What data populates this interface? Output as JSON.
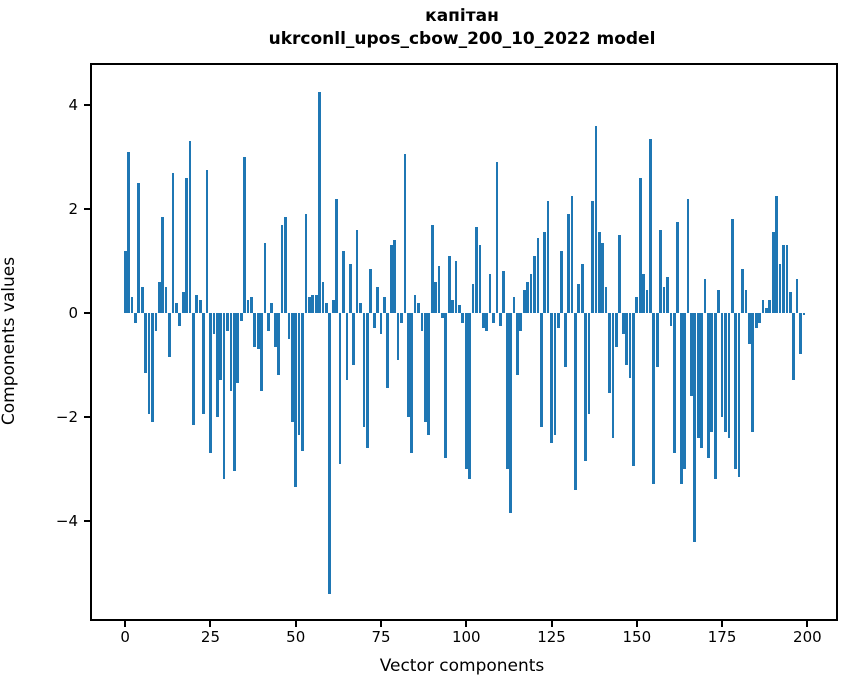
{
  "figure": {
    "background": "#ffffff",
    "title_line1": "капітан",
    "title_line2": "ukrconll_upos_cbow_200_10_2022 model"
  },
  "chart_data": {
    "type": "bar",
    "title": "капітан\nukrconll_upos_cbow_200_10_2022 model",
    "xlabel": "Vector components",
    "ylabel": "Components values",
    "bar_color": "#1f77b4",
    "axis_color": "#000000",
    "grid": false,
    "legend": "none",
    "xlim": [
      -9.73,
      208.4
    ],
    "ylim": [
      -5.89,
      4.77
    ],
    "x_ticks": [
      0,
      25,
      50,
      75,
      100,
      125,
      150,
      175,
      200
    ],
    "y_ticks": [
      4,
      2,
      0,
      -2,
      -4
    ],
    "x": "indices 0..199",
    "values": [
      1.2,
      3.1,
      0.3,
      -0.2,
      2.5,
      0.5,
      -1.15,
      -1.95,
      -2.1,
      -0.35,
      0.6,
      1.85,
      0.5,
      -0.85,
      2.7,
      0.2,
      -0.25,
      0.4,
      2.6,
      3.3,
      -2.15,
      0.35,
      0.25,
      -1.95,
      2.75,
      -2.7,
      -0.4,
      -2.0,
      -1.3,
      -3.2,
      -0.35,
      -1.5,
      -3.05,
      -1.35,
      -0.15,
      3.0,
      0.25,
      0.3,
      -0.65,
      -0.7,
      -1.5,
      1.35,
      -0.35,
      0.2,
      -0.65,
      -1.2,
      1.7,
      1.85,
      -0.5,
      -2.1,
      -3.35,
      -2.35,
      -2.65,
      1.9,
      0.3,
      0.35,
      0.35,
      4.25,
      0.6,
      0.2,
      -5.4,
      0.25,
      2.2,
      -2.9,
      1.2,
      -1.3,
      0.95,
      -1.0,
      1.6,
      0.2,
      -2.2,
      -2.6,
      0.85,
      -0.3,
      0.5,
      -0.4,
      0.3,
      -1.45,
      1.3,
      1.4,
      -0.9,
      -0.2,
      3.05,
      -2.0,
      -2.7,
      0.35,
      0.2,
      -0.35,
      -2.1,
      -2.35,
      1.7,
      0.6,
      0.9,
      -0.1,
      -2.8,
      1.1,
      0.25,
      1.0,
      0.15,
      -0.2,
      -3.0,
      -3.2,
      0.55,
      1.65,
      1.3,
      -0.3,
      -0.35,
      0.75,
      -0.2,
      2.9,
      -0.25,
      0.8,
      -3.0,
      -3.85,
      0.3,
      -1.2,
      -0.35,
      0.45,
      0.6,
      0.75,
      1.1,
      1.45,
      -2.2,
      1.55,
      2.15,
      -2.5,
      -2.35,
      -0.3,
      1.2,
      -1.05,
      1.9,
      2.25,
      -3.4,
      0.55,
      0.95,
      -2.85,
      -1.95,
      2.15,
      3.6,
      1.55,
      1.35,
      0.5,
      -1.55,
      -2.4,
      -0.65,
      1.5,
      -0.4,
      -1.0,
      -1.25,
      -2.95,
      0.3,
      2.6,
      0.75,
      0.45,
      3.35,
      -3.3,
      -1.05,
      1.6,
      0.5,
      0.7,
      -0.25,
      -2.7,
      1.75,
      -3.3,
      -3.0,
      2.2,
      -1.6,
      -4.4,
      -2.4,
      -2.6,
      0.65,
      -2.8,
      -2.3,
      -3.2,
      0.45,
      -2.0,
      -2.3,
      -2.4,
      1.8,
      -3.0,
      -3.15,
      0.85,
      0.45,
      -0.6,
      -2.3,
      -0.3,
      -0.2,
      0.25,
      0.1,
      0.25,
      1.55,
      2.25,
      0.95,
      1.3,
      1.3,
      0.4,
      -1.3,
      0.65,
      -0.8,
      -0.05
    ],
    "bar_width_fraction": 0.8,
    "n_bars": 200
  }
}
